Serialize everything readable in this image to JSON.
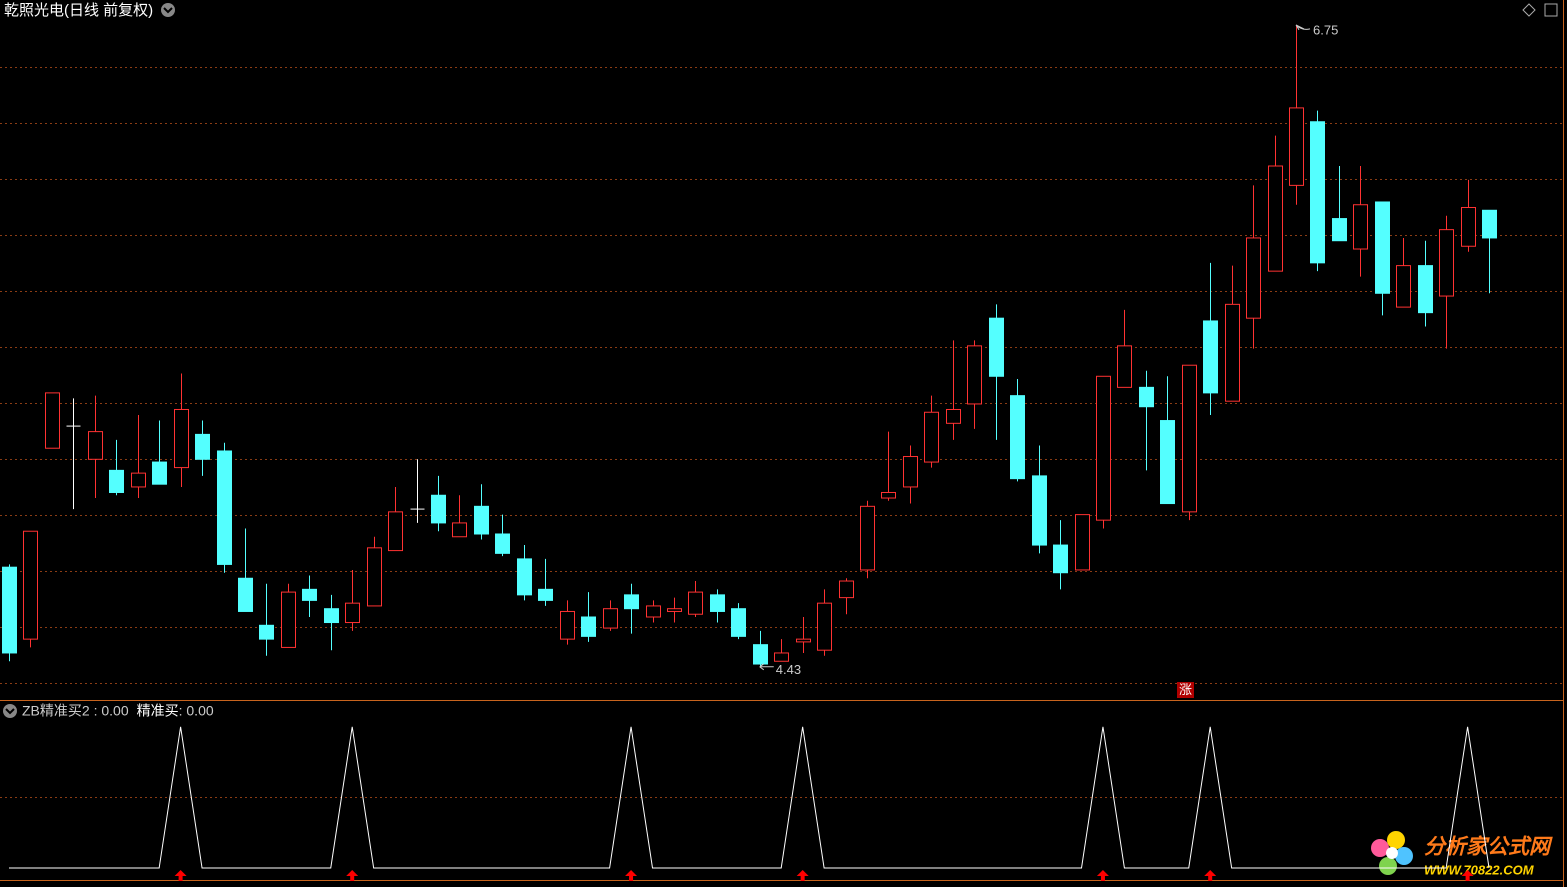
{
  "header": {
    "title": "乾照光电(日线 前复权)"
  },
  "chart_data": [
    {
      "type": "candlestick",
      "up_color": "#ff3232",
      "down_color": "#54ffff",
      "doji_color": "#ffffff",
      "ylim": [
        4.31,
        6.84
      ],
      "open": [
        4.79,
        4.53,
        5.22,
        5.3,
        5.18,
        5.14,
        5.08,
        5.17,
        5.15,
        5.27,
        5.21,
        4.75,
        4.58,
        4.5,
        4.71,
        4.64,
        4.59,
        4.65,
        4.85,
        5.0,
        5.05,
        4.9,
        5.01,
        4.91,
        4.82,
        4.71,
        4.53,
        4.61,
        4.57,
        4.69,
        4.61,
        4.63,
        4.62,
        4.69,
        4.64,
        4.51,
        4.45,
        4.52,
        4.49,
        4.68,
        4.78,
        5.04,
        5.08,
        5.17,
        5.31,
        5.38,
        5.69,
        5.41,
        5.12,
        4.87,
        4.78,
        4.96,
        5.44,
        5.44,
        5.32,
        4.99,
        5.68,
        5.39,
        5.69,
        5.86,
        6.17,
        6.4,
        6.05,
        5.94,
        6.11,
        5.73,
        5.88,
        5.77,
        5.95,
        6.08
      ],
      "high": [
        4.8,
        4.92,
        5.42,
        5.4,
        5.41,
        5.25,
        5.34,
        5.32,
        5.49,
        5.32,
        5.24,
        4.93,
        4.73,
        4.73,
        4.76,
        4.69,
        4.78,
        4.9,
        5.08,
        5.18,
        5.12,
        5.05,
        5.09,
        4.98,
        4.87,
        4.82,
        4.67,
        4.7,
        4.67,
        4.73,
        4.67,
        4.68,
        4.74,
        4.71,
        4.66,
        4.56,
        4.53,
        4.61,
        4.71,
        4.75,
        5.03,
        5.28,
        5.23,
        5.41,
        5.61,
        5.61,
        5.74,
        5.47,
        5.23,
        4.96,
        4.98,
        5.48,
        5.72,
        5.5,
        5.48,
        5.52,
        5.89,
        5.88,
        6.17,
        6.35,
        6.75,
        6.44,
        6.24,
        6.24,
        6.11,
        5.98,
        5.97,
        6.06,
        6.19,
        6.08
      ],
      "low": [
        4.45,
        4.5,
        5.22,
        5.0,
        5.04,
        5.05,
        5.04,
        5.09,
        5.08,
        5.12,
        4.77,
        4.63,
        4.47,
        4.5,
        4.61,
        4.49,
        4.56,
        4.65,
        4.85,
        4.95,
        4.92,
        4.9,
        4.89,
        4.83,
        4.67,
        4.65,
        4.51,
        4.52,
        4.56,
        4.55,
        4.59,
        4.59,
        4.61,
        4.59,
        4.53,
        4.43,
        4.45,
        4.48,
        4.47,
        4.62,
        4.75,
        5.03,
        5.02,
        5.15,
        5.25,
        5.29,
        5.25,
        5.1,
        4.84,
        4.71,
        4.78,
        4.93,
        5.44,
        5.14,
        5.02,
        4.96,
        5.34,
        5.39,
        5.58,
        5.86,
        6.1,
        5.86,
        5.97,
        5.84,
        5.7,
        5.73,
        5.66,
        5.58,
        5.93,
        5.78
      ],
      "close": [
        4.48,
        4.92,
        5.42,
        5.3,
        5.28,
        5.06,
        5.13,
        5.09,
        5.36,
        5.18,
        4.8,
        4.63,
        4.53,
        4.7,
        4.67,
        4.59,
        4.66,
        4.86,
        4.99,
        5.0,
        4.95,
        4.95,
        4.91,
        4.84,
        4.69,
        4.67,
        4.63,
        4.54,
        4.64,
        4.64,
        4.65,
        4.64,
        4.7,
        4.63,
        4.54,
        4.44,
        4.48,
        4.53,
        4.66,
        4.74,
        5.01,
        5.06,
        5.19,
        5.35,
        5.36,
        5.59,
        5.48,
        5.11,
        4.87,
        4.77,
        4.98,
        5.48,
        5.59,
        5.37,
        5.02,
        5.52,
        5.42,
        5.74,
        5.98,
        6.24,
        6.45,
        5.89,
        5.97,
        6.1,
        5.78,
        5.88,
        5.71,
        6.01,
        6.09,
        5.98
      ],
      "badge": "涨"
    },
    {
      "type": "line",
      "ylim": [
        -0.085,
        1.19
      ],
      "series": [
        {
          "name": "ZB精准买2",
          "readout": " : 0.00",
          "color": "#ffffff",
          "values": [
            0,
            0,
            0,
            0,
            0,
            0,
            0,
            0,
            1,
            0,
            0,
            0,
            0,
            0,
            0,
            0,
            1,
            0,
            0,
            0,
            0,
            0,
            0,
            0,
            0,
            0,
            0,
            0,
            0,
            1,
            0,
            0,
            0,
            0,
            0,
            0,
            0,
            1,
            0,
            0,
            0,
            0,
            0,
            0,
            0,
            0,
            0,
            0,
            0,
            0,
            0,
            1,
            0,
            0,
            0,
            0,
            1,
            0,
            0,
            0,
            0,
            0,
            0,
            0,
            0,
            0,
            0,
            0,
            1,
            0
          ]
        },
        {
          "name": "精准买",
          "readout": ": 0.00",
          "color": "#ff0000",
          "marker": "arrow",
          "values": [
            0,
            0,
            0,
            0,
            0,
            0,
            0,
            0,
            1,
            0,
            0,
            0,
            0,
            0,
            0,
            0,
            1,
            0,
            0,
            0,
            0,
            0,
            0,
            0,
            0,
            0,
            0,
            0,
            0,
            1,
            0,
            0,
            0,
            0,
            0,
            0,
            0,
            1,
            0,
            0,
            0,
            0,
            0,
            0,
            0,
            0,
            0,
            0,
            0,
            0,
            0,
            1,
            0,
            0,
            0,
            0,
            1,
            0,
            0,
            0,
            0,
            0,
            0,
            0,
            0,
            0,
            0,
            0,
            1,
            0
          ]
        }
      ]
    }
  ],
  "watermark": {
    "name": "分析家公式网",
    "url": "WWW.70822.COM"
  }
}
